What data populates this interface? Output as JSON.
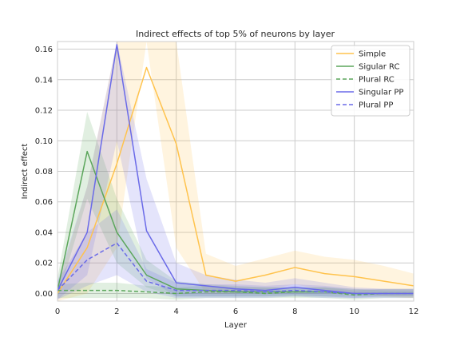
{
  "chart_data": {
    "type": "line",
    "title": "Indirect effects of top 5% of neurons by layer",
    "xlabel": "Layer",
    "ylabel": "Indirect effect",
    "xlim": [
      0,
      12
    ],
    "ylim": [
      -0.005,
      0.165
    ],
    "xticks": [
      0,
      2,
      4,
      6,
      8,
      10,
      12
    ],
    "yticks": [
      0.0,
      0.02,
      0.04,
      0.06,
      0.08,
      0.1,
      0.12,
      0.14,
      0.16
    ],
    "ytick_labels": [
      "0.00",
      "0.02",
      "0.04",
      "0.06",
      "0.08",
      "0.10",
      "0.12",
      "0.14",
      "0.16"
    ],
    "x": [
      0,
      1,
      2,
      3,
      4,
      5,
      6,
      7,
      8,
      9,
      10,
      11,
      12
    ],
    "grid": true,
    "legend_position": "top-right",
    "series": [
      {
        "name": "Simple",
        "color": "#ffc34d",
        "dash": "solid",
        "values": [
          0.0,
          0.03,
          0.085,
          0.148,
          0.098,
          0.012,
          0.008,
          0.012,
          0.017,
          0.013,
          0.011,
          0.008,
          0.005
        ],
        "lower": [
          -0.005,
          0.0,
          0.03,
          0.165,
          0.03,
          0.0,
          0.0,
          0.002,
          0.006,
          0.002,
          0.0,
          -0.002,
          -0.003
        ],
        "upper": [
          0.005,
          0.07,
          0.165,
          0.165,
          0.165,
          0.026,
          0.018,
          0.023,
          0.028,
          0.024,
          0.022,
          0.018,
          0.013
        ]
      },
      {
        "name": "Sigular RC",
        "color": "#5ba65b",
        "dash": "solid",
        "values": [
          0.002,
          0.093,
          0.04,
          0.012,
          0.003,
          0.002,
          0.001,
          0.001,
          0.001,
          0.001,
          0.0,
          0.0,
          0.0
        ],
        "lower": [
          -0.004,
          0.062,
          0.02,
          0.004,
          -0.002,
          -0.002,
          -0.002,
          -0.002,
          -0.002,
          -0.002,
          -0.002,
          -0.002,
          -0.002
        ],
        "upper": [
          0.01,
          0.119,
          0.062,
          0.022,
          0.008,
          0.006,
          0.005,
          0.004,
          0.004,
          0.004,
          0.003,
          0.002,
          0.002
        ]
      },
      {
        "name": "Plural RC",
        "color": "#5ba65b",
        "dash": "dashed",
        "values": [
          0.002,
          0.002,
          0.002,
          0.001,
          0.0,
          0.001,
          0.001,
          0.0,
          0.001,
          0.001,
          -0.001,
          0.0,
          0.0
        ],
        "lower": [
          -0.003,
          -0.003,
          -0.003,
          -0.003,
          -0.004,
          -0.003,
          -0.003,
          -0.003,
          -0.003,
          -0.003,
          -0.004,
          -0.003,
          -0.003
        ],
        "upper": [
          0.006,
          0.007,
          0.007,
          0.005,
          0.004,
          0.005,
          0.004,
          0.004,
          0.004,
          0.004,
          0.002,
          0.003,
          0.003
        ]
      },
      {
        "name": "Singular PP",
        "color": "#6a6ae8",
        "dash": "solid",
        "values": [
          0.002,
          0.04,
          0.163,
          0.041,
          0.007,
          0.005,
          0.003,
          0.002,
          0.004,
          0.002,
          0.0,
          0.0,
          0.0
        ],
        "lower": [
          -0.004,
          0.012,
          0.1,
          0.01,
          -0.002,
          -0.002,
          -0.002,
          -0.002,
          -0.001,
          -0.002,
          -0.003,
          -0.002,
          -0.002
        ],
        "upper": [
          0.008,
          0.07,
          0.165,
          0.075,
          0.02,
          0.012,
          0.009,
          0.007,
          0.01,
          0.007,
          0.004,
          0.003,
          0.003
        ]
      },
      {
        "name": "Plural PP",
        "color": "#6a6ae8",
        "dash": "dashed",
        "values": [
          0.002,
          0.022,
          0.033,
          0.008,
          0.002,
          0.002,
          0.002,
          0.001,
          0.002,
          0.001,
          0.0,
          0.0,
          0.0
        ],
        "lower": [
          -0.004,
          0.005,
          0.012,
          0.001,
          -0.003,
          -0.003,
          -0.003,
          -0.003,
          -0.002,
          -0.003,
          -0.003,
          -0.003,
          -0.003
        ],
        "upper": [
          0.008,
          0.04,
          0.055,
          0.016,
          0.007,
          0.006,
          0.006,
          0.005,
          0.006,
          0.005,
          0.003,
          0.003,
          0.003
        ]
      }
    ]
  }
}
